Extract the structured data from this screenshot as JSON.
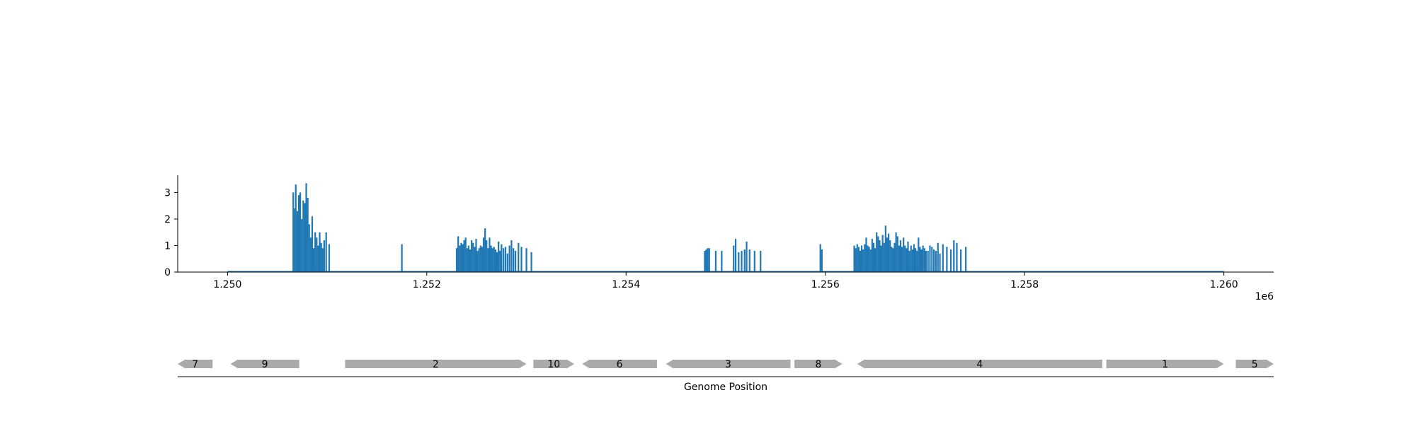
{
  "chart_data": [
    {
      "type": "bar",
      "panel": "coverage",
      "x_range": [
        1249500,
        1260500
      ],
      "ylim": [
        0,
        3.65
      ],
      "x_ticks": [
        1250000,
        1252000,
        1254000,
        1256000,
        1258000,
        1260000
      ],
      "x_tick_labels": [
        "1.250",
        "1.252",
        "1.254",
        "1.256",
        "1.258",
        "1.260"
      ],
      "x_offset_label": "1e6",
      "y_ticks": [
        0,
        1,
        2,
        3
      ],
      "y_tick_labels": [
        "0",
        "1",
        "2",
        "3"
      ],
      "baseline": [
        1250000,
        1260000
      ],
      "bar_color": "#1f77b4",
      "grid": false,
      "clusters": [
        {
          "x": [
            1250660,
            1250670,
            1250685,
            1250700,
            1250715,
            1250730,
            1250745,
            1250760,
            1250775,
            1250790,
            1250805,
            1250820,
            1250835,
            1250850,
            1250865,
            1250880,
            1250895,
            1250910,
            1250925,
            1250940,
            1250955,
            1250970,
            1250990,
            1251020
          ],
          "y": [
            3.0,
            2.4,
            3.3,
            2.3,
            2.9,
            3.0,
            2.0,
            2.7,
            2.6,
            3.35,
            2.8,
            1.8,
            1.3,
            2.1,
            0.9,
            1.5,
            1.3,
            1.0,
            1.5,
            1.1,
            0.9,
            1.2,
            1.5,
            1.05
          ]
        },
        {
          "x": [
            1251750
          ],
          "y": [
            1.05
          ]
        },
        {
          "x": [
            1252300,
            1252315,
            1252330,
            1252345,
            1252360,
            1252375,
            1252390,
            1252405,
            1252420,
            1252435,
            1252450,
            1252465,
            1252480,
            1252495,
            1252510,
            1252525,
            1252540,
            1252555,
            1252570,
            1252585,
            1252600,
            1252615,
            1252630,
            1252645,
            1252660,
            1252675,
            1252690,
            1252705,
            1252720,
            1252735,
            1252750,
            1252770,
            1252790,
            1252810,
            1252830,
            1252850,
            1252870,
            1252890,
            1252920,
            1252950,
            1253000,
            1253050
          ],
          "y": [
            0.9,
            1.35,
            1.0,
            1.1,
            1.05,
            1.2,
            1.3,
            0.9,
            1.0,
            0.85,
            1.2,
            1.1,
            0.95,
            1.25,
            0.8,
            0.9,
            1.0,
            0.95,
            1.3,
            1.65,
            1.2,
            0.9,
            1.3,
            1.0,
            0.9,
            0.95,
            0.85,
            0.75,
            1.15,
            0.8,
            1.05,
            0.9,
            0.95,
            0.7,
            1.0,
            1.2,
            0.9,
            0.8,
            1.1,
            0.95,
            0.9,
            0.75
          ]
        },
        {
          "x": [
            1254790,
            1254805,
            1254820,
            1254835,
            1254900,
            1254960
          ],
          "y": [
            0.8,
            0.85,
            0.9,
            0.9,
            0.8,
            0.8
          ]
        },
        {
          "x": [
            1255080,
            1255100,
            1255130,
            1255160,
            1255190,
            1255210,
            1255240,
            1255290,
            1255350
          ],
          "y": [
            1.0,
            1.25,
            0.75,
            0.8,
            0.85,
            1.15,
            0.85,
            0.8,
            0.8
          ]
        },
        {
          "x": [
            1255950,
            1255965
          ],
          "y": [
            1.05,
            0.85
          ]
        },
        {
          "x": [
            1256290,
            1256305,
            1256320,
            1256335,
            1256350,
            1256365,
            1256380,
            1256395,
            1256410,
            1256425,
            1256440,
            1256455,
            1256470,
            1256485,
            1256500,
            1256515,
            1256530,
            1256545,
            1256560,
            1256575,
            1256590,
            1256605,
            1256620,
            1256635,
            1256650,
            1256665,
            1256680,
            1256695,
            1256710,
            1256725,
            1256740,
            1256755,
            1256770,
            1256785,
            1256800,
            1256815,
            1256830,
            1256845,
            1256860,
            1256875,
            1256890,
            1256905,
            1256920,
            1256935,
            1256950,
            1256965,
            1256980,
            1256995,
            1257010,
            1257030,
            1257050,
            1257070,
            1257090,
            1257110,
            1257130,
            1257150,
            1257180,
            1257220,
            1257260,
            1257290,
            1257320,
            1257360,
            1257410
          ],
          "y": [
            1.0,
            0.9,
            1.05,
            0.95,
            0.8,
            1.0,
            0.85,
            1.05,
            1.3,
            1.0,
            0.95,
            0.85,
            1.25,
            1.1,
            0.9,
            1.5,
            1.35,
            1.2,
            1.0,
            1.4,
            1.1,
            1.75,
            1.3,
            1.45,
            1.2,
            0.95,
            0.9,
            1.1,
            1.5,
            1.35,
            1.0,
            1.2,
            0.95,
            1.3,
            1.0,
            0.9,
            1.15,
            0.8,
            1.0,
            0.85,
            1.05,
            0.9,
            0.8,
            1.3,
            0.95,
            0.85,
            1.0,
            0.9,
            0.8,
            0.8,
            1.0,
            0.95,
            0.85,
            0.8,
            1.1,
            0.7,
            1.05,
            0.95,
            0.85,
            1.2,
            1.1,
            0.85,
            0.95
          ]
        }
      ]
    },
    {
      "type": "gene_track",
      "panel": "genes",
      "x_range": [
        1249500,
        1260500
      ],
      "xlabel": "Genome Position",
      "feature_color": "#aaaaaa",
      "features": [
        {
          "label": "7",
          "start": 1249500,
          "end": 1249850,
          "strand": -1
        },
        {
          "label": "9",
          "start": 1250030,
          "end": 1250720,
          "strand": -1
        },
        {
          "label": "2",
          "start": 1251180,
          "end": 1253000,
          "strand": 1
        },
        {
          "label": "10",
          "start": 1253070,
          "end": 1253480,
          "strand": 1
        },
        {
          "label": "6",
          "start": 1253560,
          "end": 1254310,
          "strand": -1
        },
        {
          "label": "3",
          "start": 1254400,
          "end": 1255650,
          "strand": -1
        },
        {
          "label": "8",
          "start": 1255690,
          "end": 1256170,
          "strand": 1
        },
        {
          "label": "4",
          "start": 1256320,
          "end": 1258780,
          "strand": -1
        },
        {
          "label": "1",
          "start": 1258820,
          "end": 1260000,
          "strand": 1
        },
        {
          "label": "5",
          "start": 1260120,
          "end": 1260500,
          "strand": 1
        }
      ]
    }
  ]
}
